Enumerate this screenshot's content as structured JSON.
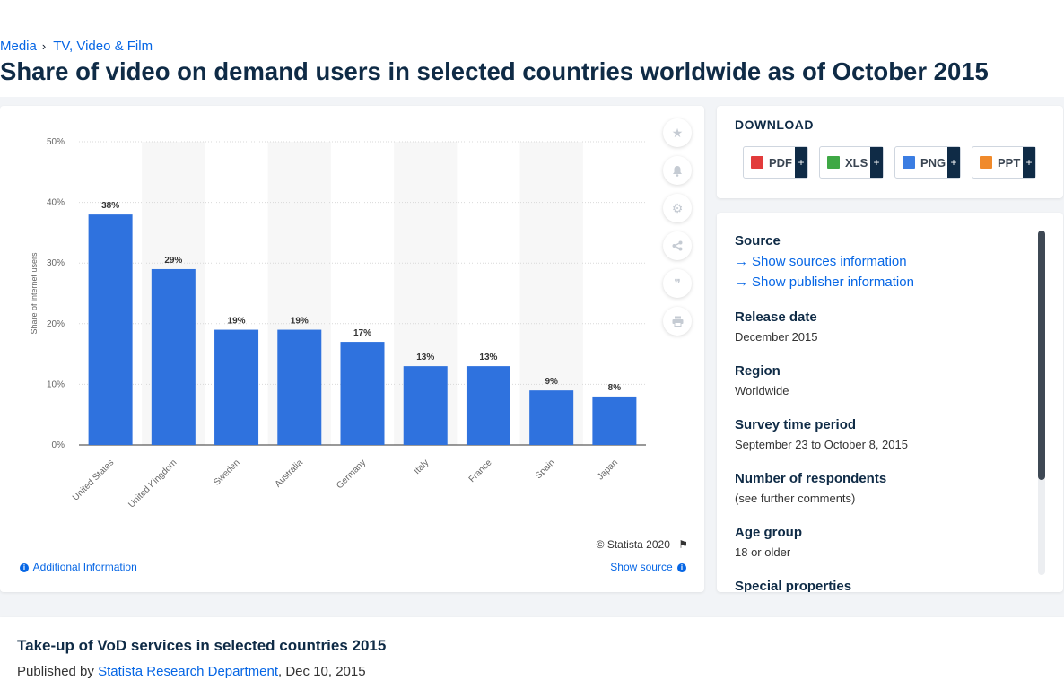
{
  "breadcrumb": [
    "Media",
    "TV, Video & Film"
  ],
  "page_title": "Share of video on demand users in selected countries worldwide as of October 2015",
  "chart_card": {
    "copyright": "© Statista 2020",
    "additional_info": "Additional Information",
    "show_source": "Show source",
    "side_icons": [
      "star-icon",
      "bell-icon",
      "gear-icon",
      "share-icon",
      "quote-icon",
      "print-icon"
    ]
  },
  "chart_data": {
    "type": "bar",
    "categories": [
      "United States",
      "United Kingdom",
      "Sweden",
      "Australia",
      "Germany",
      "Italy",
      "France",
      "Spain",
      "Japan"
    ],
    "values": [
      38,
      29,
      19,
      19,
      17,
      13,
      13,
      9,
      8
    ],
    "data_labels": [
      "38%",
      "29%",
      "19%",
      "19%",
      "17%",
      "13%",
      "13%",
      "9%",
      "8%"
    ],
    "ylabel": "Share of internet users",
    "xlabel": "",
    "ylim": [
      0,
      50
    ],
    "yticks": [
      "0%",
      "10%",
      "20%",
      "30%",
      "40%",
      "50%"
    ],
    "ytick_values": [
      0,
      10,
      20,
      30,
      40,
      50
    ],
    "bar_color": "#2f72de",
    "grid": true,
    "legend": "none"
  },
  "download": {
    "title": "DOWNLOAD",
    "buttons": [
      {
        "label": "PDF",
        "icon_color": "#e23b3b"
      },
      {
        "label": "XLS",
        "icon_color": "#3fa845"
      },
      {
        "label": "PNG",
        "icon_color": "#3b7de2"
      },
      {
        "label": "PPT",
        "icon_color": "#f08a2b"
      }
    ],
    "plus": "+"
  },
  "info": {
    "source_label": "Source",
    "show_sources": "Show sources information",
    "show_publisher": "Show publisher information",
    "release_label": "Release date",
    "release_value": "December 2015",
    "region_label": "Region",
    "region_value": "Worldwide",
    "survey_label": "Survey time period",
    "survey_value": "September 23 to October 8, 2015",
    "respondents_label": "Number of respondents",
    "respondents_value": "(see further comments)",
    "age_label": "Age group",
    "age_value": "18 or older",
    "special_label": "Special properties"
  },
  "related": {
    "title": "Take-up of VoD services in selected countries 2015",
    "published_prefix": "Published by",
    "publisher": "Statista Research Department",
    "date": ", Dec 10, 2015"
  }
}
